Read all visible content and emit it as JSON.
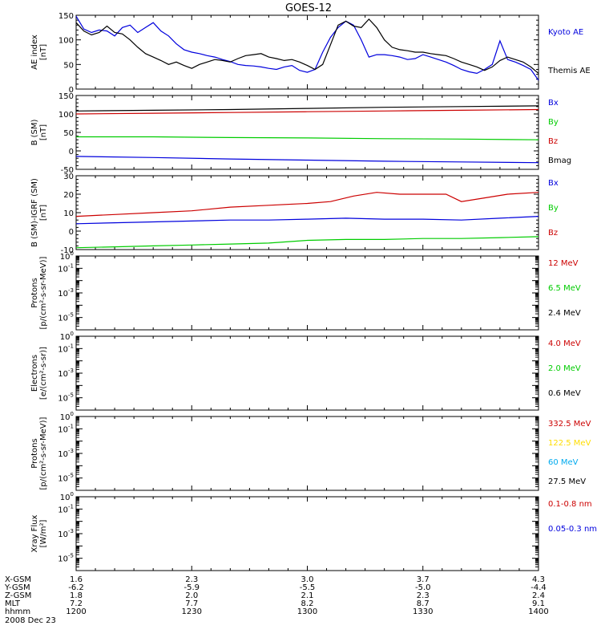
{
  "title": "GOES-12",
  "date_label": "2008 Dec 23",
  "colors": {
    "black": "#000000",
    "blue": "#0000dd",
    "red": "#cc0000",
    "green": "#00cc00",
    "yellow": "#ffdd00",
    "cyan": "#00aaee"
  },
  "orbit_table": {
    "row_labels": [
      "X-GSM",
      "Y-GSM",
      "Z-GSM",
      "MLT",
      "hhmm"
    ],
    "columns": [
      [
        "1.6",
        "-6.2",
        "1.8",
        "7.2",
        "1200"
      ],
      [
        "2.3",
        "-5.9",
        "2.0",
        "7.7",
        "1230"
      ],
      [
        "3.0",
        "-5.5",
        "2.1",
        "8.2",
        "1300"
      ],
      [
        "3.7",
        "-5.0",
        "2.3",
        "8.7",
        "1330"
      ],
      [
        "4.3",
        "-4.4",
        "2.4",
        "9.1",
        "1400"
      ]
    ]
  },
  "chart_data": [
    {
      "type": "line",
      "ylabel": [
        "AE index",
        "[nT]"
      ],
      "x_units": "minutes after 1200 UT",
      "ylim": [
        0,
        150
      ],
      "yticks": [
        0,
        50,
        100,
        150
      ],
      "series": [
        {
          "name": "Kyoto AE",
          "color": "blue",
          "x": [
            0,
            2,
            4,
            6,
            8,
            10,
            12,
            14,
            16,
            18,
            20,
            22,
            24,
            26,
            28,
            30,
            32,
            34,
            36,
            38,
            40,
            42,
            44,
            46,
            48,
            50,
            52,
            54,
            56,
            58,
            60,
            62,
            64,
            66,
            68,
            70,
            72,
            74,
            76,
            78,
            80,
            82,
            84,
            86,
            88,
            90,
            92,
            94,
            96,
            98,
            100,
            102,
            104,
            106,
            108,
            110,
            112,
            114,
            116,
            118,
            120
          ],
          "y": [
            148,
            122,
            115,
            120,
            118,
            108,
            125,
            130,
            115,
            125,
            135,
            118,
            108,
            92,
            80,
            75,
            72,
            68,
            65,
            60,
            56,
            50,
            48,
            47,
            45,
            42,
            40,
            45,
            48,
            38,
            34,
            40,
            75,
            105,
            125,
            138,
            130,
            100,
            65,
            70,
            70,
            68,
            65,
            60,
            62,
            70,
            65,
            60,
            55,
            48,
            40,
            35,
            32,
            40,
            50,
            98,
            60,
            55,
            48,
            40,
            18
          ]
        },
        {
          "name": "Themis AE",
          "color": "black",
          "x": [
            0,
            2,
            4,
            6,
            8,
            10,
            12,
            14,
            16,
            18,
            20,
            22,
            24,
            26,
            28,
            30,
            32,
            34,
            36,
            38,
            40,
            42,
            44,
            46,
            48,
            50,
            52,
            54,
            56,
            58,
            60,
            62,
            64,
            66,
            68,
            70,
            72,
            74,
            76,
            78,
            80,
            82,
            84,
            86,
            88,
            90,
            92,
            94,
            96,
            98,
            100,
            102,
            104,
            106,
            108,
            110,
            112,
            114,
            116,
            118,
            120
          ],
          "y": [
            135,
            118,
            110,
            115,
            128,
            115,
            112,
            100,
            85,
            72,
            65,
            58,
            50,
            55,
            48,
            42,
            50,
            55,
            60,
            58,
            55,
            62,
            68,
            70,
            72,
            65,
            62,
            58,
            60,
            55,
            48,
            40,
            50,
            90,
            130,
            138,
            128,
            125,
            142,
            125,
            100,
            85,
            80,
            78,
            75,
            75,
            72,
            70,
            68,
            62,
            55,
            50,
            45,
            38,
            45,
            58,
            65,
            60,
            55,
            45,
            32
          ]
        }
      ],
      "legend": [
        "Kyoto AE",
        "Themis AE"
      ]
    },
    {
      "type": "line",
      "ylabel": [
        "B (SM)",
        "[nT]"
      ],
      "ylim": [
        -50,
        150
      ],
      "yticks": [
        -50,
        0,
        50,
        100,
        150
      ],
      "series": [
        {
          "name": "Bx",
          "color": "blue",
          "x": [
            0,
            20,
            40,
            60,
            80,
            100,
            120
          ],
          "y": [
            -15,
            -18,
            -22,
            -25,
            -28,
            -30,
            -32
          ]
        },
        {
          "name": "By",
          "color": "green",
          "x": [
            0,
            20,
            40,
            60,
            80,
            100,
            120
          ],
          "y": [
            38,
            38,
            36,
            35,
            33,
            32,
            30
          ]
        },
        {
          "name": "Bz",
          "color": "red",
          "x": [
            0,
            20,
            40,
            60,
            80,
            100,
            120
          ],
          "y": [
            100,
            102,
            104,
            106,
            108,
            110,
            112
          ]
        },
        {
          "name": "Bmag",
          "color": "black",
          "x": [
            0,
            20,
            40,
            60,
            80,
            100,
            120
          ],
          "y": [
            108,
            110,
            112,
            115,
            118,
            120,
            122
          ]
        }
      ],
      "legend": [
        "Bx",
        "By",
        "Bz",
        "Bmag"
      ]
    },
    {
      "type": "line",
      "ylabel": [
        "B (SM)-IGRF (SM)",
        "[nT]"
      ],
      "ylim": [
        -10,
        30
      ],
      "yticks": [
        -10,
        0,
        10,
        20,
        30
      ],
      "series": [
        {
          "name": "Bx",
          "color": "blue",
          "x": [
            0,
            10,
            20,
            30,
            40,
            50,
            60,
            70,
            80,
            90,
            100,
            110,
            120
          ],
          "y": [
            4,
            4.5,
            5,
            5.5,
            6,
            6,
            6.5,
            7,
            6.5,
            6.5,
            6,
            7,
            8
          ]
        },
        {
          "name": "By",
          "color": "green",
          "x": [
            0,
            10,
            20,
            30,
            40,
            50,
            60,
            70,
            80,
            90,
            100,
            110,
            120
          ],
          "y": [
            -9,
            -8.5,
            -8,
            -7.5,
            -7,
            -6.5,
            -5,
            -4.5,
            -4.5,
            -4,
            -4,
            -3.5,
            -3
          ]
        },
        {
          "name": "Bz",
          "color": "red",
          "x": [
            0,
            10,
            20,
            30,
            40,
            50,
            60,
            66,
            72,
            78,
            84,
            90,
            96,
            100,
            106,
            112,
            120
          ],
          "y": [
            8,
            9,
            10,
            11,
            13,
            14,
            15,
            16,
            19,
            21,
            20,
            20,
            20,
            16,
            18,
            20,
            21
          ]
        }
      ],
      "legend": [
        "Bx",
        "By",
        "Bz"
      ]
    },
    {
      "type": "line",
      "ylabel": [
        "Protons",
        "[p/(cm²-s-sr-MeV)]"
      ],
      "ylim": [
        -6,
        0
      ],
      "yscale": "log",
      "series": [],
      "legend": [
        "12 MeV",
        "6.5 MeV",
        "2.4 MeV"
      ],
      "legend_colors": [
        "red",
        "green",
        "black"
      ]
    },
    {
      "type": "line",
      "ylabel": [
        "Electrons",
        "[e/(cm²-s-sr)]"
      ],
      "ylim": [
        -6,
        0
      ],
      "yscale": "log",
      "series": [],
      "legend": [
        "4.0 MeV",
        "2.0 MeV",
        "0.6 MeV"
      ],
      "legend_colors": [
        "red",
        "green",
        "black"
      ]
    },
    {
      "type": "line",
      "ylabel": [
        "Protons",
        "[p/(cm²-s-sr-MeV)]"
      ],
      "ylim": [
        -6,
        0
      ],
      "yscale": "log",
      "series": [],
      "legend": [
        "332.5 MeV",
        "122.5 MeV",
        "60 MeV",
        "27.5 MeV"
      ],
      "legend_colors": [
        "red",
        "yellow",
        "cyan",
        "black"
      ]
    },
    {
      "type": "line",
      "ylabel": [
        "Xray Flux",
        "[W/m²]"
      ],
      "ylim": [
        -6,
        0
      ],
      "yscale": "log",
      "series": [],
      "legend": [
        "0.1-0.8 nm",
        "0.05-0.3 nm"
      ],
      "legend_colors": [
        "red",
        "blue"
      ]
    }
  ]
}
